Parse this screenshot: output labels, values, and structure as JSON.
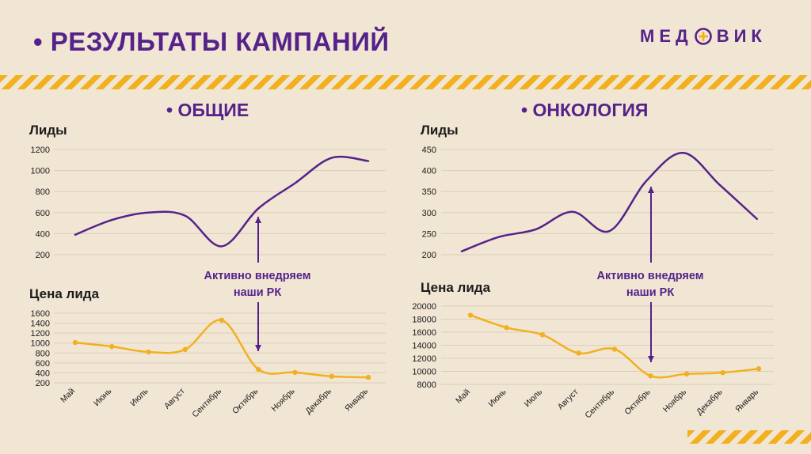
{
  "header": {
    "title": "• РЕЗУЛЬТАТЫ КАМПАНИЙ",
    "logo_left": "МЕД",
    "logo_right": "ВИК"
  },
  "sections": {
    "left": "• ОБЩИЕ",
    "right": "• ОНКОЛОГИЯ"
  },
  "labels": {
    "leads": "Лиды",
    "lead_price": "Цена лида"
  },
  "annotation": {
    "line1": "Активно внедряем",
    "line2": "наши РК"
  },
  "colors": {
    "brand": "#55228a",
    "accent": "#f2b01e",
    "grid": "#dccdb8",
    "background": "#f1e6d4"
  },
  "chart_data": [
    {
      "type": "line",
      "panel": "Общие",
      "ylabel": "Лиды",
      "categories": [
        "Май",
        "Июнь",
        "Июль",
        "Август",
        "Сентябрь",
        "Октябрь",
        "Ноябрь",
        "Декабрь",
        "Январь"
      ],
      "values": [
        390,
        530,
        600,
        570,
        280,
        640,
        880,
        1120,
        1090
      ],
      "ylim": [
        200,
        1200
      ],
      "yticks": [
        200,
        400,
        600,
        800,
        1000,
        1200
      ],
      "color": "#55228a",
      "markers": false
    },
    {
      "type": "line",
      "panel": "Общие",
      "ylabel": "Цена лида",
      "categories": [
        "Май",
        "Июнь",
        "Июль",
        "Август",
        "Сентябрь",
        "Октябрь",
        "Ноябрь",
        "Декабрь",
        "Январь"
      ],
      "values": [
        1010,
        930,
        820,
        870,
        1460,
        470,
        410,
        330,
        310
      ],
      "ylim": [
        200,
        1600
      ],
      "yticks": [
        200,
        400,
        600,
        800,
        1000,
        1200,
        1400,
        1600
      ],
      "color": "#f2b01e",
      "markers": true
    },
    {
      "type": "line",
      "panel": "Онкология",
      "ylabel": "Лиды",
      "categories": [
        "Май",
        "Июнь",
        "Июль",
        "Август",
        "Сентябрь",
        "Октябрь",
        "Ноябрь",
        "Декабрь",
        "Январь"
      ],
      "values": [
        208,
        242,
        260,
        302,
        256,
        375,
        442,
        365,
        285
      ],
      "ylim": [
        200,
        450
      ],
      "yticks": [
        200,
        250,
        300,
        350,
        400,
        450
      ],
      "color": "#55228a",
      "markers": false
    },
    {
      "type": "line",
      "panel": "Онкология",
      "ylabel": "Цена лида",
      "categories": [
        "Май",
        "Июнь",
        "Июль",
        "Август",
        "Сентябрь",
        "Октябрь",
        "Ноябрь",
        "Декабрь",
        "Январь"
      ],
      "values": [
        18600,
        16700,
        15600,
        12800,
        13400,
        9300,
        9600,
        9800,
        10400
      ],
      "ylim": [
        8000,
        20000
      ],
      "yticks": [
        8000,
        10000,
        12000,
        14000,
        16000,
        18000,
        20000
      ],
      "color": "#f2b01e",
      "markers": true
    }
  ]
}
